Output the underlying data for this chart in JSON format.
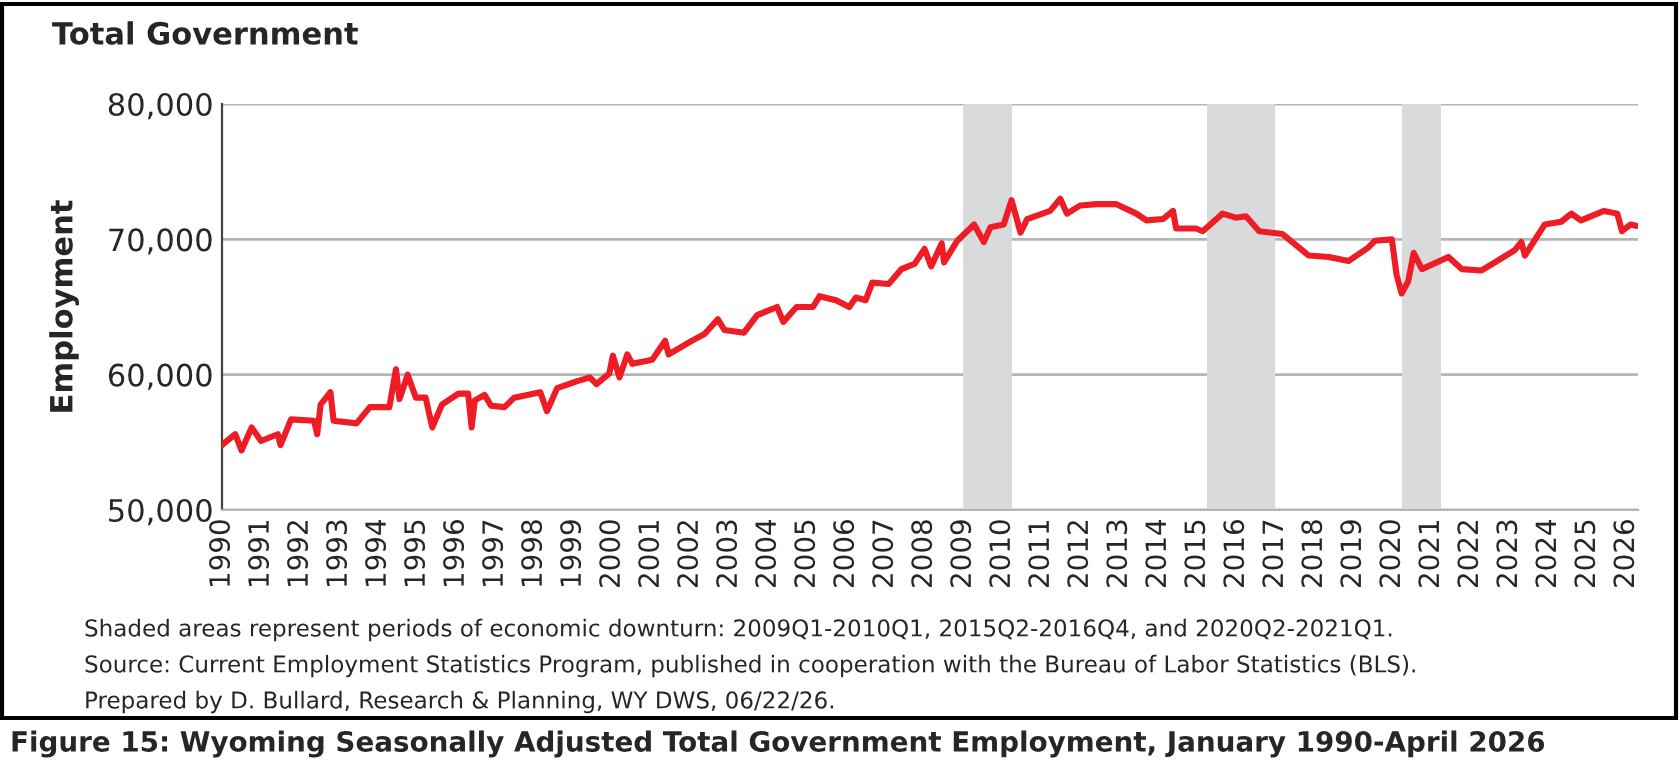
{
  "chart_data": {
    "type": "line",
    "title": "Total Government",
    "ylabel": "Employment",
    "annotations": [
      "Shaded areas represent periods of economic downturn: 2009Q1-2010Q1, 2015Q2-2016Q4, and 2020Q2-2021Q1.",
      "Source: Current Employment Statistics Program, published in cooperation with the Bureau of Labor Statistics (BLS).",
      "Prepared by D. Bullard, Research & Planning, WY DWS, 06/22/26.",
      "Figure 15: Wyoming Seasonally Adjusted Total Government Employment, January 1990-April 2026"
    ],
    "series": [
      {
        "color": "#ee1c25",
        "x": [
          1990.0,
          1990.34,
          1990.5,
          1990.76,
          1991.0,
          1991.43,
          1991.5,
          1991.77,
          1992.36,
          1992.44,
          1992.53,
          1992.78,
          1992.86,
          1993.45,
          1993.79,
          1994.29,
          1994.46,
          1994.55,
          1994.76,
          1994.97,
          1995.22,
          1995.39,
          1995.64,
          1996.06,
          1996.31,
          1996.4,
          1996.48,
          1996.73,
          1996.9,
          1997.24,
          1997.49,
          1998.16,
          1998.33,
          1998.59,
          1999.09,
          1999.43,
          1999.6,
          1999.93,
          2000.02,
          2000.19,
          2000.39,
          2000.52,
          2001.03,
          2001.36,
          2001.45,
          2002.04,
          2002.37,
          2002.71,
          2002.88,
          2003.38,
          2003.72,
          2004.23,
          2004.39,
          2004.73,
          2005.15,
          2005.32,
          2005.74,
          2006.08,
          2006.25,
          2006.5,
          2006.67,
          2007.09,
          2007.42,
          2007.76,
          2008.01,
          2008.18,
          2008.45,
          2008.51,
          2008.85,
          2009.28,
          2009.53,
          2009.7,
          2010.04,
          2010.24,
          2010.47,
          2010.64,
          2011.23,
          2011.49,
          2011.66,
          2012.0,
          2012.42,
          2012.93,
          2013.44,
          2013.7,
          2014.12,
          2014.38,
          2014.46,
          2014.97,
          2015.14,
          2015.65,
          2015.99,
          2016.25,
          2016.59,
          2017.18,
          2017.86,
          2018.37,
          2018.88,
          2019.39,
          2019.56,
          2019.99,
          2020.11,
          2020.24,
          2020.41,
          2020.55,
          2020.76,
          2021.44,
          2021.78,
          2022.29,
          2022.63,
          2023.14,
          2023.31,
          2023.4,
          2023.91,
          2024.33,
          2024.59,
          2024.84,
          2025.43,
          2025.77,
          2025.89,
          2026.11,
          2026.25
        ],
        "values": [
          54800,
          55600,
          54400,
          56100,
          55100,
          55600,
          54800,
          56700,
          56600,
          55600,
          57800,
          58700,
          56600,
          56400,
          57600,
          57600,
          60400,
          58200,
          60000,
          58300,
          58300,
          56100,
          57800,
          58600,
          58600,
          56100,
          58100,
          58500,
          57700,
          57600,
          58300,
          58700,
          57300,
          59000,
          59500,
          59800,
          59300,
          60100,
          61400,
          59800,
          61500,
          60800,
          61100,
          62500,
          61500,
          62500,
          63000,
          64100,
          63300,
          63100,
          64400,
          65000,
          63900,
          65000,
          65000,
          65800,
          65500,
          65000,
          65700,
          65500,
          66800,
          66700,
          67800,
          68200,
          69300,
          68000,
          69700,
          68300,
          69900,
          71100,
          69800,
          70900,
          71100,
          72900,
          70500,
          71500,
          72100,
          73000,
          71900,
          72500,
          72600,
          72600,
          71900,
          71400,
          71500,
          72100,
          70800,
          70800,
          70600,
          71900,
          71600,
          71700,
          70600,
          70400,
          68800,
          68700,
          68400,
          69400,
          69900,
          70000,
          67400,
          66000,
          66900,
          69000,
          67800,
          68700,
          67800,
          67700,
          68300,
          69200,
          69800,
          68800,
          71100,
          71300,
          71900,
          71400,
          72100,
          71900,
          70600,
          71100,
          71000
        ]
      }
    ],
    "xlim": [
      1990,
      2026.3
    ],
    "xticks": [
      1990,
      1991,
      1992,
      1993,
      1994,
      1995,
      1996,
      1997,
      1998,
      1999,
      2000,
      2001,
      2002,
      2003,
      2004,
      2005,
      2006,
      2007,
      2008,
      2009,
      2010,
      2011,
      2012,
      2013,
      2014,
      2015,
      2016,
      2017,
      2018,
      2019,
      2020,
      2021,
      2022,
      2023,
      2024,
      2025,
      2026
    ],
    "ylim": [
      50000,
      80000
    ],
    "yticks": [
      {
        "value": 50000,
        "label": "50,000"
      },
      {
        "value": 60000,
        "label": "60,000"
      },
      {
        "value": 70000,
        "label": "70,000"
      },
      {
        "value": 80000,
        "label": "80,000"
      }
    ],
    "bands": [
      {
        "axis": "x",
        "from": 2009.0,
        "to": 2010.25,
        "color": "#d9dadc"
      },
      {
        "axis": "x",
        "from": 2015.25,
        "to": 2017.0,
        "color": "#d9dadc"
      },
      {
        "axis": "x",
        "from": 2020.25,
        "to": 2021.25,
        "color": "#d9dadc"
      }
    ],
    "grid": "y",
    "legend": false,
    "marker": "none",
    "line_style": "solid"
  }
}
